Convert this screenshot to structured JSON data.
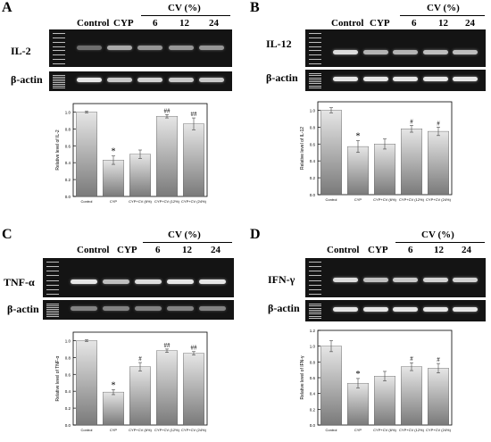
{
  "panels": [
    {
      "letter": "A",
      "header": {
        "control": "Control",
        "cyp": "CYP",
        "cv": "CV (%)",
        "doses": [
          "6",
          "12",
          "24"
        ]
      },
      "gene_label": "IL-2",
      "actin_label": "β-actin",
      "gene_intensity": [
        0.35,
        0.65,
        0.55,
        0.55,
        0.55
      ],
      "actin_intensity": [
        0.95,
        0.8,
        0.85,
        0.8,
        0.8
      ]
    },
    {
      "letter": "B",
      "header": {
        "control": "Control",
        "cyp": "CYP",
        "cv": "CV (%)",
        "doses": [
          "6",
          "12",
          "24"
        ]
      },
      "gene_label": "IL-12",
      "actin_label": "β-actin",
      "gene_intensity": [
        0.9,
        0.7,
        0.7,
        0.75,
        0.75
      ],
      "actin_intensity": [
        0.95,
        0.95,
        0.95,
        0.95,
        0.95
      ]
    },
    {
      "letter": "C",
      "header": {
        "control": "Control",
        "cyp": "CYP",
        "cv": "CV (%)",
        "doses": [
          "6",
          "12",
          "24"
        ]
      },
      "gene_label": "TNF-α",
      "actin_label": "β-actin",
      "gene_intensity": [
        0.95,
        0.75,
        0.9,
        0.95,
        0.95
      ],
      "actin_intensity": [
        0.45,
        0.45,
        0.45,
        0.45,
        0.45
      ]
    },
    {
      "letter": "D",
      "header": {
        "control": "Control",
        "cyp": "CYP",
        "cv": "CV (%)",
        "doses": [
          "6",
          "12",
          "24"
        ]
      },
      "gene_label": "IFN-γ",
      "actin_label": "β-actin",
      "gene_intensity": [
        0.9,
        0.75,
        0.8,
        0.85,
        0.85
      ],
      "actin_intensity": [
        0.95,
        0.95,
        0.95,
        0.95,
        0.95
      ]
    }
  ],
  "chart_data": [
    {
      "type": "bar",
      "panel": "A",
      "categories": [
        "Control",
        "CYP",
        "CYP+CV (6%)",
        "CYP+CV (12%)",
        "CYP+CV (24%)"
      ],
      "values": [
        1.0,
        0.43,
        0.5,
        0.95,
        0.86
      ],
      "errors": [
        0.01,
        0.05,
        0.05,
        0.02,
        0.07
      ],
      "significance": [
        "",
        "*",
        "",
        "##",
        "##"
      ],
      "ylabel": "Relative level of IL-2",
      "ylim": [
        0,
        1.1
      ],
      "yticks": [
        "0.0",
        "0.2",
        "0.4",
        "0.6",
        "0.8",
        "1.0"
      ],
      "grid": false
    },
    {
      "type": "bar",
      "panel": "B",
      "categories": [
        "Control",
        "CYP",
        "CYP+CV (6%)",
        "CYP+CV (12%)",
        "CYP+CV (24%)"
      ],
      "values": [
        1.0,
        0.57,
        0.6,
        0.78,
        0.75
      ],
      "errors": [
        0.03,
        0.07,
        0.06,
        0.04,
        0.05
      ],
      "significance": [
        "",
        "*",
        "",
        "#",
        "#"
      ],
      "ylabel": "Relative level of IL-12",
      "ylim": [
        0,
        1.1
      ],
      "yticks": [
        "0.0",
        "0.2",
        "0.4",
        "0.6",
        "0.8",
        "1.0"
      ],
      "grid": false
    },
    {
      "type": "bar",
      "panel": "C",
      "categories": [
        "Control",
        "CYP",
        "CYP+CV (6%)",
        "CYP+CV (12%)",
        "CYP+CV (24%)"
      ],
      "values": [
        1.0,
        0.39,
        0.69,
        0.88,
        0.85
      ],
      "errors": [
        0.01,
        0.03,
        0.05,
        0.02,
        0.02
      ],
      "significance": [
        "",
        "*",
        "#",
        "##",
        "##"
      ],
      "ylabel": "Relative level of TNF-α",
      "ylim": [
        0,
        1.1
      ],
      "yticks": [
        "0.0",
        "0.2",
        "0.4",
        "0.6",
        "0.8",
        "1.0"
      ],
      "grid": false
    },
    {
      "type": "bar",
      "panel": "D",
      "categories": [
        "Control",
        "CYP",
        "CYP+CV (6%)",
        "CYP+CV (12%)",
        "CYP+CV (24%)"
      ],
      "values": [
        1.0,
        0.53,
        0.62,
        0.74,
        0.72
      ],
      "errors": [
        0.07,
        0.06,
        0.06,
        0.05,
        0.06
      ],
      "significance": [
        "",
        "*",
        "",
        "#",
        "#"
      ],
      "ylabel": "Relative level of IFN-γ",
      "ylim": [
        0,
        1.2
      ],
      "yticks": [
        "0.0",
        "0.2",
        "0.4",
        "0.6",
        "0.8",
        "1.0",
        "1.2"
      ],
      "grid": false
    }
  ]
}
